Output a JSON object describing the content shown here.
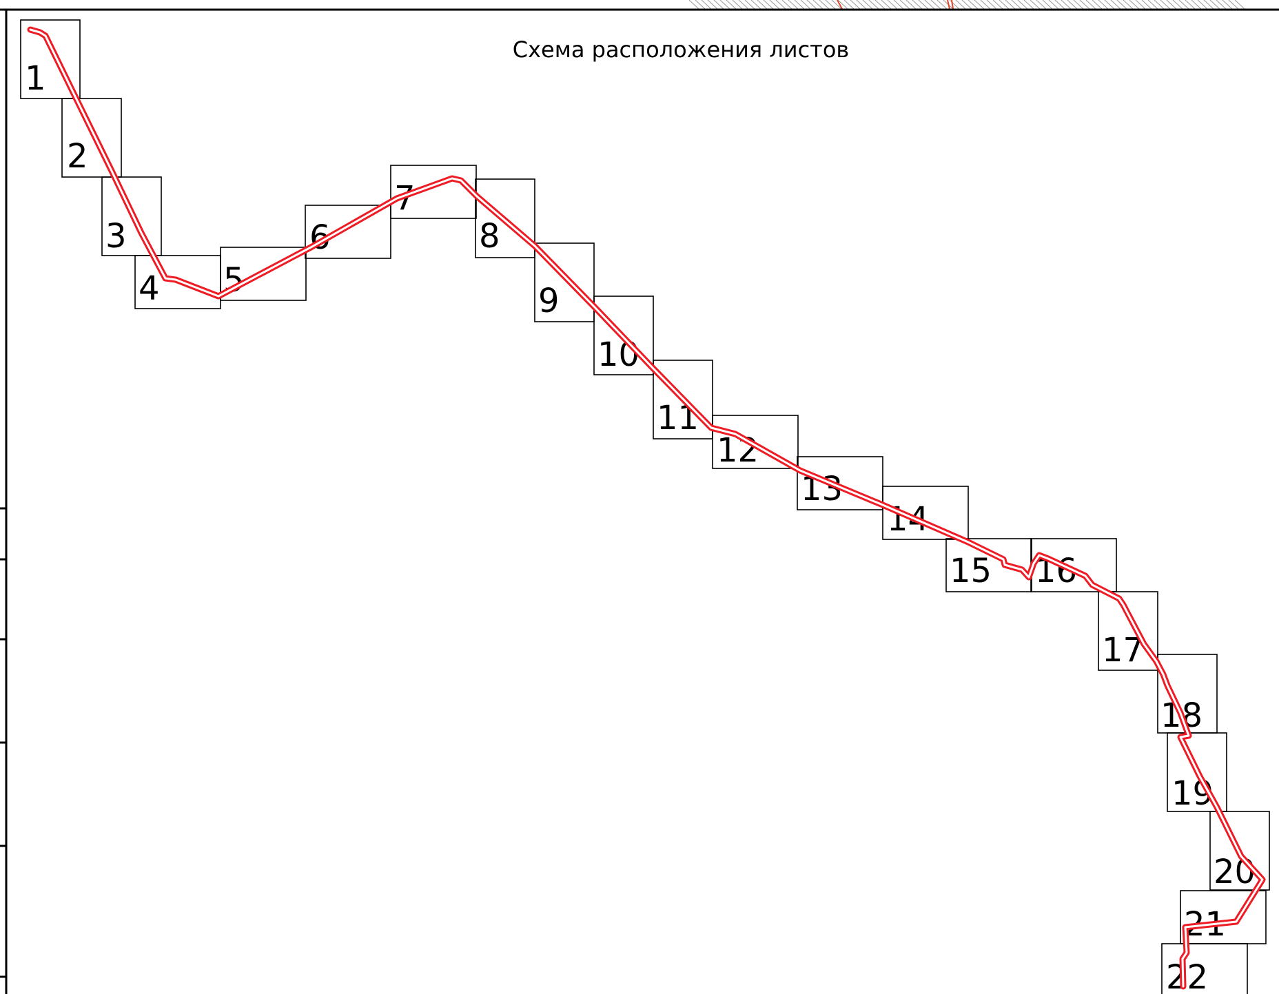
{
  "title": "Схема расположения листов",
  "colors": {
    "route": "#ee1c25",
    "frame": "#000000",
    "hatch": "#9a9a9a",
    "accent": "#e2462a"
  },
  "sheets": [
    {
      "label": "1"
    },
    {
      "label": "2"
    },
    {
      "label": "3"
    },
    {
      "label": "4"
    },
    {
      "label": "5"
    },
    {
      "label": "6"
    },
    {
      "label": "7"
    },
    {
      "label": "8"
    },
    {
      "label": "9"
    },
    {
      "label": "10"
    },
    {
      "label": "11"
    },
    {
      "label": "12"
    },
    {
      "label": "13"
    },
    {
      "label": "14"
    },
    {
      "label": "15"
    },
    {
      "label": "16"
    },
    {
      "label": "17"
    },
    {
      "label": "18"
    },
    {
      "label": "19"
    },
    {
      "label": "20"
    },
    {
      "label": "21"
    },
    {
      "label": "22"
    }
  ]
}
